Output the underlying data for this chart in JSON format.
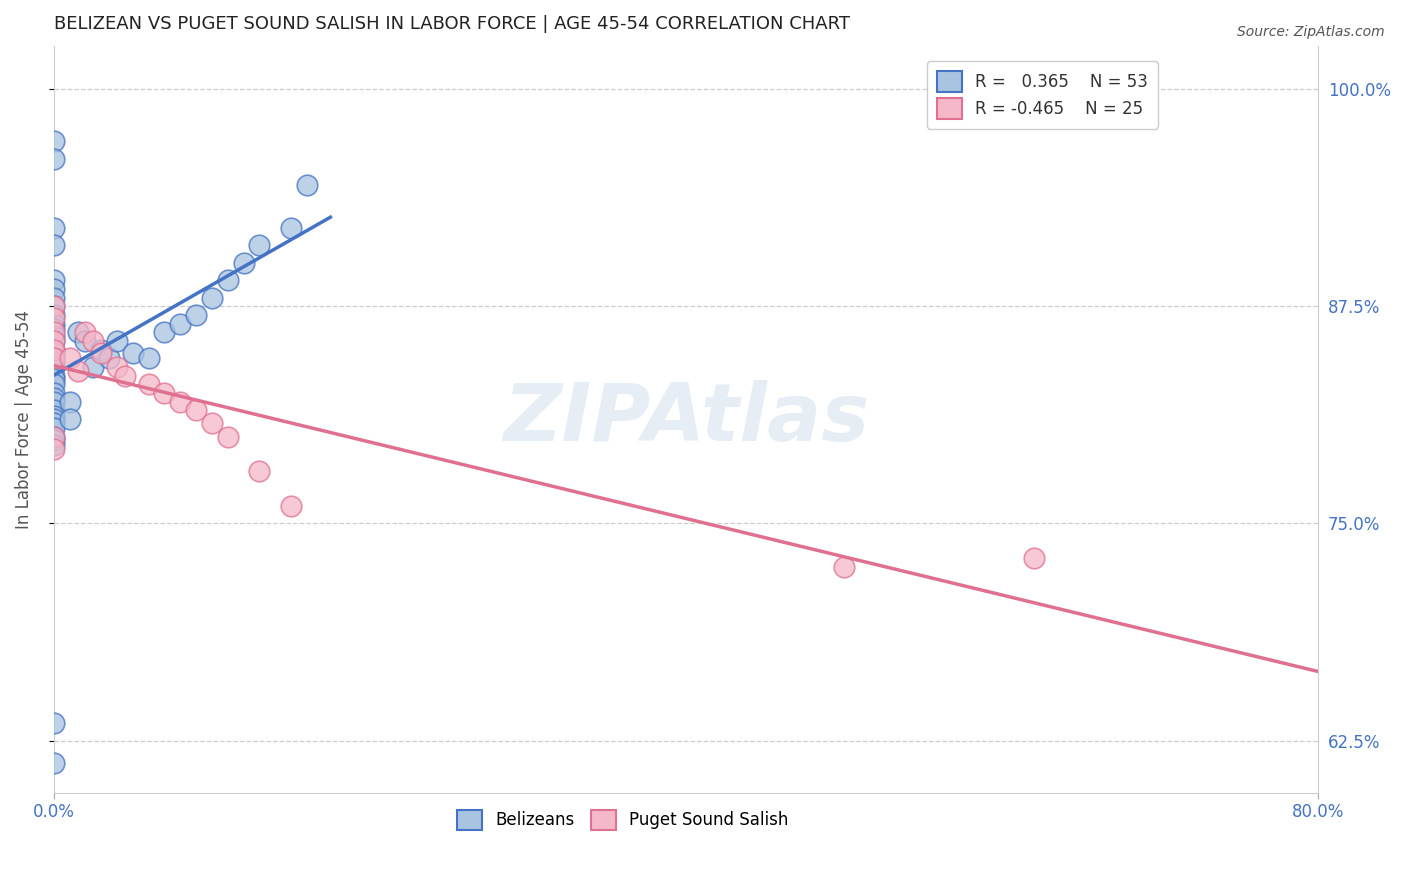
{
  "title": "BELIZEAN VS PUGET SOUND SALISH IN LABOR FORCE | AGE 45-54 CORRELATION CHART",
  "source": "Source: ZipAtlas.com",
  "ylabel": "In Labor Force | Age 45-54",
  "xlim": [
    0.0,
    0.8
  ],
  "ylim": [
    0.595,
    1.025
  ],
  "xticks": [
    0.0,
    0.8
  ],
  "xticklabels": [
    "0.0%",
    "80.0%"
  ],
  "yticks": [
    0.625,
    0.75,
    0.875,
    1.0
  ],
  "yticklabels": [
    "62.5%",
    "75.0%",
    "87.5%",
    "100.0%"
  ],
  "legend_blue_r": "0.365",
  "legend_blue_n": "53",
  "legend_pink_r": "-0.465",
  "legend_pink_n": "25",
  "blue_fill": "#a8c4e0",
  "pink_fill": "#f4b8c8",
  "blue_edge": "#4472c4",
  "pink_edge": "#e07090",
  "blue_line": "#4472c4",
  "pink_line": "#e07090",
  "blue_scatter": [
    [
      0.0,
      0.97
    ],
    [
      0.0,
      0.96
    ],
    [
      0.0,
      0.92
    ],
    [
      0.0,
      0.91
    ],
    [
      0.0,
      0.89
    ],
    [
      0.0,
      0.885
    ],
    [
      0.0,
      0.88
    ],
    [
      0.0,
      0.875
    ],
    [
      0.0,
      0.87
    ],
    [
      0.0,
      0.865
    ],
    [
      0.0,
      0.862
    ],
    [
      0.0,
      0.858
    ],
    [
      0.0,
      0.855
    ],
    [
      0.0,
      0.85
    ],
    [
      0.0,
      0.848
    ],
    [
      0.0,
      0.845
    ],
    [
      0.0,
      0.843
    ],
    [
      0.0,
      0.84
    ],
    [
      0.0,
      0.835
    ],
    [
      0.0,
      0.833
    ],
    [
      0.0,
      0.83
    ],
    [
      0.0,
      0.825
    ],
    [
      0.0,
      0.822
    ],
    [
      0.0,
      0.82
    ],
    [
      0.0,
      0.815
    ],
    [
      0.0,
      0.812
    ],
    [
      0.0,
      0.81
    ],
    [
      0.0,
      0.808
    ],
    [
      0.0,
      0.805
    ],
    [
      0.0,
      0.8
    ],
    [
      0.0,
      0.798
    ],
    [
      0.0,
      0.795
    ],
    [
      0.01,
      0.82
    ],
    [
      0.01,
      0.81
    ],
    [
      0.015,
      0.86
    ],
    [
      0.02,
      0.855
    ],
    [
      0.025,
      0.84
    ],
    [
      0.03,
      0.85
    ],
    [
      0.035,
      0.845
    ],
    [
      0.04,
      0.855
    ],
    [
      0.05,
      0.848
    ],
    [
      0.06,
      0.845
    ],
    [
      0.07,
      0.86
    ],
    [
      0.08,
      0.865
    ],
    [
      0.09,
      0.87
    ],
    [
      0.1,
      0.88
    ],
    [
      0.11,
      0.89
    ],
    [
      0.12,
      0.9
    ],
    [
      0.13,
      0.91
    ],
    [
      0.15,
      0.92
    ],
    [
      0.16,
      0.945
    ],
    [
      0.0,
      0.635
    ],
    [
      0.0,
      0.612
    ]
  ],
  "pink_scatter": [
    [
      0.0,
      0.875
    ],
    [
      0.0,
      0.868
    ],
    [
      0.0,
      0.86
    ],
    [
      0.0,
      0.855
    ],
    [
      0.0,
      0.85
    ],
    [
      0.0,
      0.845
    ],
    [
      0.01,
      0.845
    ],
    [
      0.015,
      0.838
    ],
    [
      0.02,
      0.86
    ],
    [
      0.025,
      0.855
    ],
    [
      0.03,
      0.848
    ],
    [
      0.04,
      0.84
    ],
    [
      0.045,
      0.835
    ],
    [
      0.06,
      0.83
    ],
    [
      0.07,
      0.825
    ],
    [
      0.08,
      0.82
    ],
    [
      0.09,
      0.815
    ],
    [
      0.1,
      0.808
    ],
    [
      0.11,
      0.8
    ],
    [
      0.13,
      0.78
    ],
    [
      0.15,
      0.76
    ],
    [
      0.0,
      0.8
    ],
    [
      0.0,
      0.793
    ],
    [
      0.5,
      0.725
    ],
    [
      0.62,
      0.73
    ]
  ],
  "blue_trend_x": [
    0.0,
    0.175
  ],
  "pink_trend_x": [
    0.0,
    0.8
  ],
  "watermark": "ZIPAtlas",
  "grid_color": "#c8c8c8",
  "tick_color": "#4472c4",
  "title_color": "#222222"
}
